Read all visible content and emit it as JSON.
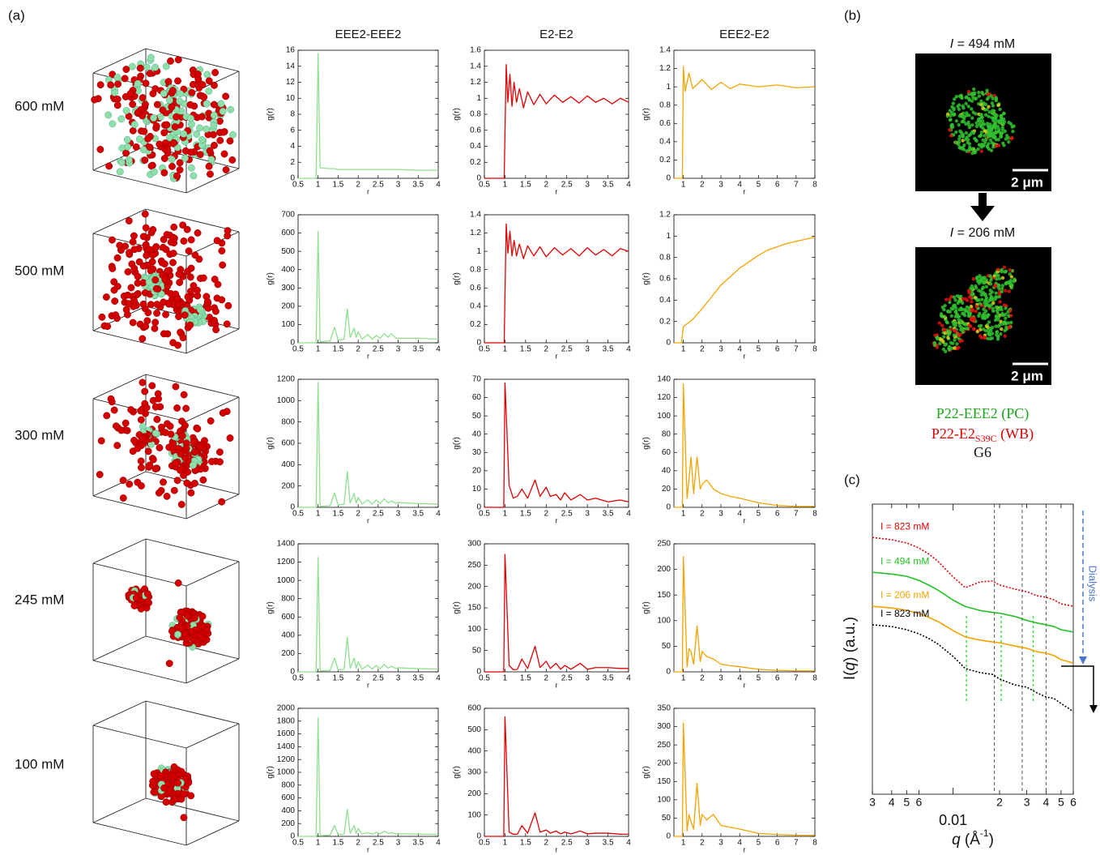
{
  "labels": {
    "panel_a": "(a)",
    "panel_b": "(b)",
    "panel_c": "(c)",
    "rows": [
      "600 mM",
      "500 mM",
      "300 mM",
      "245 mM",
      "100 mM"
    ],
    "micrographs": [
      {
        "symbol": "I",
        "title": " = 494 mM",
        "scale_bar": "2 μm"
      },
      {
        "symbol": "I",
        "title": " = 206 mM",
        "scale_bar": "2 μm"
      }
    ],
    "legend": {
      "pc": "P22-EEE2 (PC)",
      "wb": "P22-E2",
      "wb_sub": "S39C",
      "wb_rest": " (WB)",
      "linker": "G6"
    },
    "dialysis": "Dialysis"
  },
  "chart_data": [
    {
      "type": "line",
      "title": "EEE2-EEE2",
      "xlabel": "r",
      "ylabel": "g(r)",
      "color": "#8fe08f",
      "x": [
        0.5,
        0.95,
        1,
        1.05,
        1.3,
        1.41,
        1.5,
        1.65,
        1.73,
        1.8,
        1.9,
        1.95,
        2,
        2.1,
        2.24,
        2.35,
        2.45,
        2.55,
        2.65,
        2.75,
        2.83,
        2.95,
        3,
        3.5,
        4
      ],
      "values": [
        0,
        0,
        15.6,
        1.3,
        1.2,
        1.2,
        1.1,
        1.1,
        1.1,
        1.1,
        1.1,
        1.1,
        1.1,
        1.1,
        1.1,
        1.1,
        1.1,
        1.1,
        1.1,
        1.1,
        1.1,
        1.1,
        1.1,
        1,
        1
      ],
      "xlim": [
        0.5,
        4
      ],
      "ylim": [
        0,
        16
      ],
      "xticks": [
        0.5,
        1,
        1.5,
        2,
        2.5,
        3,
        3.5,
        4
      ],
      "yticks": [
        0,
        2,
        4,
        6,
        8,
        10,
        12,
        14,
        16
      ]
    },
    {
      "type": "line",
      "title": "E2-E2",
      "xlabel": "r",
      "ylabel": "g(r)",
      "color": "#e00000",
      "x": [
        0.5,
        0.98,
        1.03,
        1.07,
        1.12,
        1.17,
        1.22,
        1.28,
        1.35,
        1.45,
        1.55,
        1.7,
        1.85,
        2,
        2.2,
        2.4,
        2.6,
        2.8,
        3,
        3.2,
        3.4,
        3.6,
        3.8,
        4
      ],
      "values": [
        0,
        0,
        1.42,
        0.95,
        1.3,
        0.9,
        1.2,
        0.95,
        1.12,
        0.88,
        1.08,
        0.92,
        1.05,
        0.93,
        1.04,
        0.95,
        1.02,
        0.94,
        1.03,
        0.95,
        1,
        0.93,
        1,
        0.95
      ],
      "xlim": [
        0.5,
        4
      ],
      "ylim": [
        0,
        1.6
      ],
      "xticks": [
        0.5,
        1,
        1.5,
        2,
        2.5,
        3,
        3.5,
        4
      ],
      "yticks": [
        0,
        0.2,
        0.4,
        0.6,
        0.8,
        1,
        1.2,
        1.4,
        1.6
      ]
    },
    {
      "type": "line",
      "title": "EEE2-E2",
      "xlabel": "r",
      "ylabel": "g(r)",
      "color": "#f5a300",
      "x": [
        0.5,
        0.95,
        1,
        1.1,
        1.3,
        1.5,
        2,
        2.5,
        3,
        3.5,
        4,
        5,
        6,
        7,
        8
      ],
      "values": [
        0,
        0,
        1.22,
        0.95,
        1.15,
        0.98,
        1.08,
        0.97,
        1.05,
        0.98,
        1.03,
        1,
        1.02,
        0.99,
        1
      ],
      "xlim": [
        0.5,
        8
      ],
      "ylim": [
        0,
        1.4
      ],
      "xticks": [
        1,
        2,
        3,
        4,
        5,
        6,
        7,
        8
      ],
      "yticks": [
        0,
        0.2,
        0.4,
        0.6,
        0.8,
        1,
        1.2,
        1.4
      ]
    },
    {
      "type": "line",
      "xlabel": "r",
      "ylabel": "g(r)",
      "color": "#8fe08f",
      "x": [
        0.5,
        0.95,
        1,
        1.05,
        1.3,
        1.41,
        1.5,
        1.65,
        1.73,
        1.8,
        1.9,
        1.95,
        2,
        2.1,
        2.24,
        2.35,
        2.45,
        2.55,
        2.65,
        2.75,
        2.83,
        2.95,
        3,
        3.5,
        4
      ],
      "values": [
        0,
        0,
        610,
        5,
        10,
        85,
        15,
        20,
        185,
        30,
        80,
        30,
        60,
        20,
        45,
        20,
        40,
        25,
        50,
        30,
        50,
        25,
        25,
        25,
        20
      ],
      "xlim": [
        0.5,
        4
      ],
      "ylim": [
        0,
        700
      ],
      "xticks": [
        0.5,
        1,
        1.5,
        2,
        2.5,
        3,
        3.5,
        4
      ],
      "yticks": [
        0,
        100,
        200,
        300,
        400,
        500,
        600,
        700
      ]
    },
    {
      "type": "line",
      "xlabel": "r",
      "ylabel": "g(r)",
      "color": "#e00000",
      "x": [
        0.5,
        0.98,
        1.03,
        1.07,
        1.12,
        1.17,
        1.22,
        1.28,
        1.35,
        1.45,
        1.55,
        1.7,
        1.85,
        2,
        2.2,
        2.4,
        2.6,
        2.8,
        3,
        3.2,
        3.4,
        3.6,
        3.8,
        4
      ],
      "values": [
        0,
        0,
        1.3,
        0.98,
        1.22,
        0.95,
        1.12,
        0.95,
        1.08,
        0.92,
        1.06,
        0.95,
        1.05,
        0.94,
        1.04,
        0.96,
        1.03,
        0.95,
        1.04,
        0.96,
        1.02,
        0.95,
        1.03,
        1
      ],
      "xlim": [
        0.5,
        4
      ],
      "ylim": [
        0,
        1.4
      ],
      "xticks": [
        0.5,
        1,
        1.5,
        2,
        2.5,
        3,
        3.5,
        4
      ],
      "yticks": [
        0,
        0.2,
        0.4,
        0.6,
        0.8,
        1,
        1.2,
        1.4
      ]
    },
    {
      "type": "line",
      "xlabel": "r",
      "ylabel": "g(r)",
      "color": "#f5a300",
      "x": [
        0.5,
        0.9,
        1,
        1.5,
        2,
        2.5,
        3,
        3.5,
        4,
        4.5,
        5,
        5.5,
        6,
        6.5,
        7,
        7.5,
        8
      ],
      "values": [
        0,
        0,
        0.15,
        0.22,
        0.32,
        0.43,
        0.54,
        0.62,
        0.7,
        0.76,
        0.82,
        0.87,
        0.9,
        0.93,
        0.95,
        0.97,
        0.99
      ],
      "xlim": [
        0.5,
        8
      ],
      "ylim": [
        0,
        1.2
      ],
      "xticks": [
        1,
        2,
        3,
        4,
        5,
        6,
        7,
        8
      ],
      "yticks": [
        0,
        0.2,
        0.4,
        0.6,
        0.8,
        1,
        1.2
      ]
    },
    {
      "type": "line",
      "xlabel": "r",
      "ylabel": "g(r)",
      "color": "#8fe08f",
      "x": [
        0.5,
        0.95,
        1,
        1.05,
        1.3,
        1.41,
        1.5,
        1.65,
        1.73,
        1.8,
        1.9,
        1.95,
        2,
        2.1,
        2.24,
        2.35,
        2.45,
        2.55,
        2.65,
        2.75,
        2.83,
        2.95,
        3,
        3.5,
        4
      ],
      "values": [
        0,
        0,
        1170,
        10,
        15,
        135,
        20,
        30,
        335,
        40,
        130,
        40,
        95,
        30,
        70,
        30,
        70,
        35,
        80,
        40,
        60,
        35,
        45,
        35,
        30
      ],
      "xlim": [
        0.5,
        4
      ],
      "ylim": [
        0,
        1200
      ],
      "xticks": [
        0.5,
        1,
        1.5,
        2,
        2.5,
        3,
        3.5,
        4
      ],
      "yticks": [
        0,
        200,
        400,
        600,
        800,
        1000,
        1200
      ]
    },
    {
      "type": "line",
      "xlabel": "r",
      "ylabel": "g(r)",
      "color": "#e00000",
      "x": [
        0.5,
        0.97,
        1,
        1.1,
        1.2,
        1.3,
        1.41,
        1.55,
        1.73,
        1.85,
        2,
        2.1,
        2.24,
        2.35,
        2.45,
        2.6,
        2.83,
        3,
        3.2,
        3.5,
        3.8,
        4
      ],
      "values": [
        0,
        0,
        68,
        12,
        5,
        6,
        10,
        5,
        15,
        6,
        11,
        6,
        7,
        4,
        8,
        4,
        7,
        4,
        5,
        3,
        4,
        3
      ],
      "xlim": [
        0.5,
        4
      ],
      "ylim": [
        0,
        70
      ],
      "xticks": [
        0.5,
        1,
        1.5,
        2,
        2.5,
        3,
        3.5,
        4
      ],
      "yticks": [
        0,
        10,
        20,
        30,
        40,
        50,
        60,
        70
      ]
    },
    {
      "type": "line",
      "xlabel": "r",
      "ylabel": "g(r)",
      "color": "#f5a300",
      "x": [
        0.5,
        0.95,
        1,
        1.2,
        1.3,
        1.41,
        1.55,
        1.73,
        1.9,
        2,
        2.24,
        2.6,
        3,
        3.5,
        4,
        5,
        6,
        7,
        8
      ],
      "values": [
        0,
        0,
        135,
        10,
        30,
        55,
        15,
        55,
        20,
        25,
        30,
        20,
        15,
        12,
        10,
        5,
        2,
        1,
        1
      ],
      "xlim": [
        0.5,
        8
      ],
      "ylim": [
        0,
        140
      ],
      "xticks": [
        1,
        2,
        3,
        4,
        5,
        6,
        7,
        8
      ],
      "yticks": [
        0,
        20,
        40,
        60,
        80,
        100,
        120,
        140
      ]
    },
    {
      "type": "line",
      "xlabel": "r",
      "ylabel": "g(r)",
      "color": "#8fe08f",
      "x": [
        0.5,
        0.95,
        1,
        1.05,
        1.3,
        1.41,
        1.5,
        1.65,
        1.73,
        1.8,
        1.9,
        1.95,
        2,
        2.1,
        2.24,
        2.35,
        2.45,
        2.55,
        2.65,
        2.75,
        2.83,
        2.95,
        3,
        3.5,
        4
      ],
      "values": [
        0,
        0,
        1250,
        10,
        15,
        150,
        20,
        30,
        380,
        40,
        150,
        40,
        110,
        30,
        75,
        30,
        70,
        35,
        80,
        40,
        60,
        35,
        45,
        35,
        30
      ],
      "xlim": [
        0.5,
        4
      ],
      "ylim": [
        0,
        1400
      ],
      "xticks": [
        0.5,
        1,
        1.5,
        2,
        2.5,
        3,
        3.5,
        4
      ],
      "yticks": [
        0,
        200,
        400,
        600,
        800,
        1000,
        1200,
        1400
      ]
    },
    {
      "type": "line",
      "xlabel": "r",
      "ylabel": "g(r)",
      "color": "#e00000",
      "x": [
        0.5,
        0.97,
        1,
        1.1,
        1.2,
        1.3,
        1.41,
        1.55,
        1.73,
        1.85,
        2,
        2.1,
        2.24,
        2.35,
        2.45,
        2.6,
        2.83,
        3,
        3.2,
        3.5,
        3.8,
        4
      ],
      "values": [
        0,
        0,
        275,
        15,
        5,
        6,
        30,
        8,
        60,
        10,
        25,
        8,
        20,
        6,
        15,
        6,
        20,
        6,
        10,
        10,
        8,
        8
      ],
      "xlim": [
        0.5,
        4
      ],
      "ylim": [
        0,
        300
      ],
      "xticks": [
        0.5,
        1,
        1.5,
        2,
        2.5,
        3,
        3.5,
        4
      ],
      "yticks": [
        0,
        50,
        100,
        150,
        200,
        250,
        300
      ]
    },
    {
      "type": "line",
      "xlabel": "r",
      "ylabel": "g(r)",
      "color": "#f5a300",
      "x": [
        0.5,
        0.95,
        1,
        1.2,
        1.3,
        1.41,
        1.55,
        1.73,
        1.9,
        2,
        2.24,
        2.6,
        3,
        3.5,
        4,
        5,
        6,
        7,
        8
      ],
      "values": [
        0,
        0,
        225,
        10,
        45,
        40,
        15,
        90,
        20,
        40,
        30,
        25,
        15,
        12,
        10,
        5,
        3,
        2,
        2
      ],
      "xlim": [
        0.5,
        8
      ],
      "ylim": [
        0,
        250
      ],
      "xticks": [
        1,
        2,
        3,
        4,
        5,
        6,
        7,
        8
      ],
      "yticks": [
        0,
        50,
        100,
        150,
        200,
        250
      ]
    },
    {
      "type": "line",
      "xlabel": "r",
      "ylabel": "g(r)",
      "color": "#8fe08f",
      "x": [
        0.5,
        0.95,
        1,
        1.05,
        1.3,
        1.41,
        1.5,
        1.65,
        1.73,
        1.8,
        1.9,
        1.95,
        2,
        2.1,
        2.24,
        2.35,
        2.45,
        2.55,
        2.65,
        2.75,
        2.83,
        2.95,
        3,
        3.5,
        4
      ],
      "values": [
        0,
        0,
        1850,
        10,
        20,
        170,
        25,
        35,
        420,
        45,
        170,
        45,
        120,
        35,
        60,
        35,
        60,
        40,
        80,
        45,
        60,
        35,
        40,
        35,
        30
      ],
      "xlim": [
        0.5,
        4
      ],
      "ylim": [
        0,
        2000
      ],
      "xticks": [
        0.5,
        1,
        1.5,
        2,
        2.5,
        3,
        3.5,
        4
      ],
      "yticks": [
        0,
        200,
        400,
        600,
        800,
        1000,
        1200,
        1400,
        1600,
        1800,
        2000
      ]
    },
    {
      "type": "line",
      "xlabel": "r",
      "ylabel": "g(r)",
      "color": "#e00000",
      "x": [
        0.5,
        0.97,
        1,
        1.1,
        1.2,
        1.3,
        1.41,
        1.55,
        1.73,
        1.85,
        2,
        2.1,
        2.24,
        2.35,
        2.45,
        2.6,
        2.83,
        3,
        3.2,
        3.5,
        3.8,
        4
      ],
      "values": [
        0,
        0,
        560,
        20,
        10,
        10,
        50,
        15,
        110,
        20,
        30,
        15,
        25,
        12,
        20,
        12,
        25,
        12,
        15,
        15,
        10,
        10
      ],
      "xlim": [
        0.5,
        4
      ],
      "ylim": [
        0,
        600
      ],
      "xticks": [
        0.5,
        1,
        1.5,
        2,
        2.5,
        3,
        3.5,
        4
      ],
      "yticks": [
        0,
        100,
        200,
        300,
        400,
        500,
        600
      ]
    },
    {
      "type": "line",
      "xlabel": "r",
      "ylabel": "g(r)",
      "color": "#f5a300",
      "x": [
        0.5,
        0.95,
        1,
        1.2,
        1.3,
        1.41,
        1.55,
        1.73,
        1.9,
        2,
        2.24,
        2.6,
        3,
        3.5,
        4,
        5,
        6,
        7,
        8
      ],
      "values": [
        0,
        0,
        310,
        15,
        60,
        40,
        20,
        145,
        30,
        60,
        45,
        60,
        30,
        25,
        20,
        8,
        5,
        3,
        3
      ],
      "xlim": [
        0.5,
        8
      ],
      "ylim": [
        0,
        350
      ],
      "xticks": [
        1,
        2,
        3,
        4,
        5,
        6,
        7,
        8
      ],
      "yticks": [
        0,
        50,
        100,
        150,
        200,
        250,
        300,
        350
      ]
    },
    {
      "type": "line",
      "xlabel": [
        "q",
        " (Å",
        "-1",
        ")"
      ],
      "ylabel": [
        "I(",
        "q",
        ") (a.u.)"
      ],
      "x_scale": "log",
      "x": [
        0.003,
        0.004,
        0.005,
        0.006,
        0.007,
        0.008,
        0.01,
        0.012,
        0.015,
        0.018,
        0.02,
        0.025,
        0.03,
        0.035,
        0.04,
        0.045,
        0.05,
        0.06
      ],
      "series": [
        {
          "name": "I = 823 mM",
          "color": "#e00000",
          "dash": "dotted",
          "values": [
            88.5,
            87.7,
            86.6,
            84.9,
            82.7,
            80.2,
            74.9,
            71.2,
            73.2,
            73.5,
            72.1,
            70.7,
            69.8,
            68.4,
            67.9,
            67,
            65.6,
            64.8
          ]
        },
        {
          "name": "I = 494 mM",
          "color": "#22c022",
          "dash": "solid",
          "values": [
            76.5,
            75.9,
            75.1,
            73.7,
            72,
            70.3,
            66.9,
            64.7,
            63.3,
            62.7,
            62.4,
            61.3,
            59.9,
            59,
            58.4,
            57.8,
            56.7,
            55.9
          ]
        },
        {
          "name": "I = 206 mM",
          "color": "#f5a300",
          "dash": "solid",
          "values": [
            64.8,
            64.2,
            63.4,
            62.3,
            60.9,
            59.5,
            56.4,
            54.2,
            53.1,
            52.5,
            52.2,
            51.1,
            50.3,
            49.1,
            48.6,
            47.8,
            46.4,
            45.2
          ]
        },
        {
          "name": "I = 823 mM",
          "color": "#000000",
          "dash": "dotted",
          "values": [
            58.4,
            57.8,
            56.7,
            55.3,
            53.6,
            51.7,
            47.5,
            43.3,
            41.9,
            41.3,
            39.7,
            37.7,
            36.9,
            34.9,
            33.5,
            33,
            31.3,
            28.5
          ]
        }
      ],
      "vlines": [
        {
          "x": 0.0185,
          "color": "#555555"
        },
        {
          "x": 0.028,
          "color": "#555555"
        },
        {
          "x": 0.04,
          "color": "#555555"
        },
        {
          "x": 0.0122,
          "color": "#33dd33"
        },
        {
          "x": 0.0205,
          "color": "#33dd33"
        },
        {
          "x": 0.033,
          "color": "#33dd33"
        }
      ],
      "xlim": [
        0.003,
        0.06
      ],
      "ylim": [
        0,
        100
      ],
      "xticks": [
        {
          "value": 0.003,
          "label": "3"
        },
        {
          "value": 0.004,
          "label": "4"
        },
        {
          "value": 0.005,
          "label": "5"
        },
        {
          "value": 0.006,
          "label": "6"
        },
        0.01,
        {
          "value": 0.02,
          "label": "2"
        },
        {
          "value": 0.03,
          "label": "3"
        },
        {
          "value": 0.04,
          "label": "4"
        },
        {
          "value": 0.05,
          "label": "5"
        },
        {
          "value": 0.06,
          "label": "6"
        }
      ]
    }
  ]
}
